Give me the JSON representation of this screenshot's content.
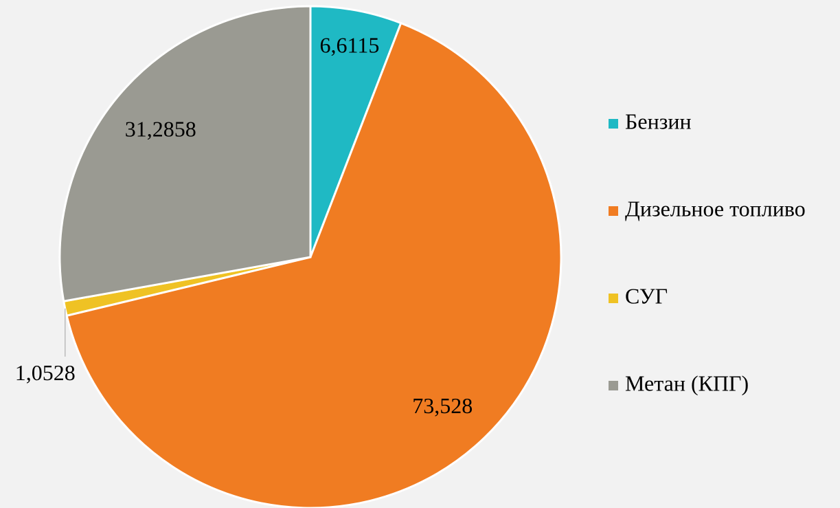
{
  "chart_data": {
    "type": "pie",
    "categories": [
      "Бензин",
      "Дизельное топливо",
      "СУГ",
      "Метан (КПГ)"
    ],
    "values": [
      6.6115,
      73.528,
      1.0528,
      31.2858
    ],
    "value_labels": [
      "6,6115",
      "73,528",
      "1,0528",
      "31,2858"
    ],
    "colors": [
      "#1fb9c4",
      "#f07c22",
      "#efc224",
      "#9a9a92"
    ],
    "legend": "right"
  }
}
